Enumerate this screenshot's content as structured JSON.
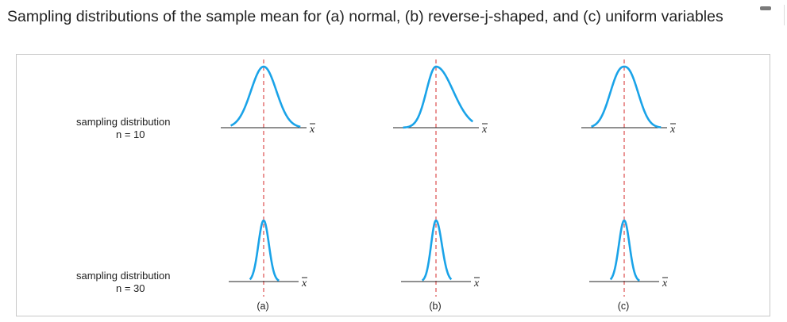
{
  "page": {
    "title": "Sampling distributions of the sample mean for (a) normal, (b) reverse-j-shaped, and (c) uniform variables"
  },
  "figure": {
    "rows": [
      {
        "label_line1": "sampling distribution",
        "label_line2": "n = 10"
      },
      {
        "label_line1": "sampling distribution",
        "label_line2": "n = 30"
      }
    ],
    "columns": [
      "(a)",
      "(b)",
      "(c)"
    ],
    "axis_symbol": "x",
    "colors": {
      "curve": "#1aa3e8",
      "mean_line": "#d42a2a",
      "axis": "#222222"
    }
  }
}
